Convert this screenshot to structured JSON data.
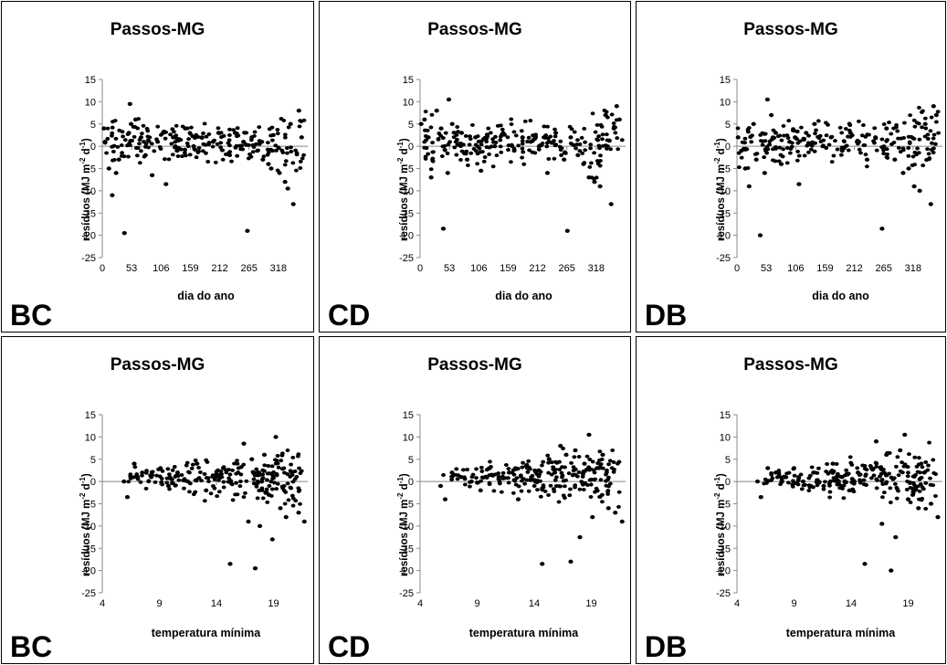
{
  "ylabel_prefix": "resíduos (MJ m",
  "ylabel_exp1": "-2",
  "ylabel_mid": " d",
  "ylabel_exp2": "-1",
  "ylabel_suffix": ")",
  "chart_data": [
    {
      "type": "scatter",
      "title": "Passos-MG",
      "panel_label": "BC",
      "xlabel": "dia do ano",
      "ylabel": "resíduos (MJ m-2 d-1)",
      "xlim": [
        0,
        371
      ],
      "ylim": [
        -25,
        15
      ],
      "xticks": [
        0,
        53,
        106,
        159,
        212,
        265,
        318
      ],
      "yticks": [
        15,
        10,
        5,
        0,
        -5,
        -10,
        -15,
        -20,
        -25
      ],
      "grid": false,
      "x": [
        3,
        5,
        12,
        18,
        25,
        30,
        40,
        48,
        50,
        52,
        60,
        70,
        78,
        90,
        100,
        110,
        115,
        128,
        135,
        150,
        165,
        180,
        200,
        210,
        230,
        240,
        255,
        262,
        270,
        280,
        290,
        300,
        305,
        320,
        330,
        335,
        340,
        345,
        355,
        360
      ],
      "y": [
        4,
        1,
        -5,
        -11,
        -6,
        -3,
        -19.5,
        3,
        9.5,
        5,
        6,
        2,
        -2,
        -6.5,
        1,
        3,
        -8.5,
        2,
        -1,
        4,
        0,
        2,
        1,
        3,
        -2,
        3,
        1,
        -19,
        2,
        -1,
        -3,
        -4,
        -5,
        -6,
        -8,
        -9.5,
        5,
        -13,
        8,
        2
      ]
    },
    {
      "type": "scatter",
      "title": "Passos-MG",
      "panel_label": "CD",
      "xlabel": "dia do ano",
      "ylabel": "resíduos (MJ m-2 d-1)",
      "xlim": [
        0,
        371
      ],
      "ylim": [
        -25,
        15
      ],
      "xticks": [
        0,
        53,
        106,
        159,
        212,
        265,
        318
      ],
      "yticks": [
        15,
        10,
        5,
        0,
        -5,
        -10,
        -15,
        -20,
        -25
      ],
      "grid": false,
      "x": [
        2,
        8,
        15,
        20,
        30,
        38,
        42,
        50,
        52,
        58,
        65,
        75,
        85,
        100,
        110,
        120,
        135,
        150,
        170,
        185,
        200,
        215,
        230,
        245,
        260,
        266,
        272,
        285,
        295,
        305,
        315,
        325,
        335,
        345,
        350,
        355,
        360
      ],
      "y": [
        5,
        6,
        2,
        -7,
        8,
        4,
        -18.5,
        -6,
        10.5,
        5,
        1,
        3,
        -3,
        2,
        -5.5,
        2,
        0,
        3,
        -1,
        2,
        1,
        0,
        -6,
        3,
        -3,
        -19,
        2,
        -2,
        -4,
        -7,
        -8,
        -9,
        7,
        -13,
        4,
        9,
        6
      ]
    },
    {
      "type": "scatter",
      "title": "Passos-MG",
      "panel_label": "DB",
      "xlabel": "dia do ano",
      "ylabel": "resíduos (MJ m-2 d-1)",
      "xlim": [
        0,
        371
      ],
      "ylim": [
        -25,
        15
      ],
      "xticks": [
        0,
        53,
        106,
        159,
        212,
        265,
        318
      ],
      "yticks": [
        15,
        10,
        5,
        0,
        -5,
        -10,
        -15,
        -20,
        -25
      ],
      "grid": false,
      "x": [
        2,
        8,
        15,
        22,
        30,
        35,
        42,
        50,
        55,
        62,
        70,
        80,
        95,
        105,
        112,
        125,
        140,
        155,
        170,
        190,
        205,
        220,
        235,
        250,
        262,
        270,
        285,
        300,
        310,
        320,
        330,
        340,
        350,
        355,
        360
      ],
      "y": [
        2,
        -1,
        -5,
        -9,
        5,
        -3,
        -20,
        -6,
        10.5,
        7,
        3,
        -4,
        1,
        2,
        -8.5,
        3,
        5,
        0,
        2,
        -1,
        3,
        1,
        -3,
        2,
        -18.5,
        4,
        -3,
        -6,
        -5,
        -9,
        -10,
        5,
        -13,
        9,
        7
      ]
    },
    {
      "type": "scatter",
      "title": "Passos-MG",
      "panel_label": "BC",
      "xlabel": "temperatura mínima",
      "ylabel": "resíduos (MJ m-2 d-1)",
      "xlim": [
        4,
        22
      ],
      "ylim": [
        -25,
        15
      ],
      "xticks": [
        4,
        9,
        14,
        19
      ],
      "yticks": [
        15,
        10,
        5,
        0,
        -5,
        -10,
        -15,
        -20,
        -25
      ],
      "grid": false,
      "x": [
        5.9,
        6.2,
        6.8,
        7.5,
        8.3,
        9.1,
        9.8,
        10.6,
        11.5,
        12.3,
        13.1,
        13.8,
        14.6,
        15.2,
        15.9,
        16.4,
        16.8,
        17.1,
        17.4,
        17.8,
        18.2,
        18.6,
        18.9,
        19.2,
        19.6,
        20.1,
        20.6,
        21.2,
        21.7
      ],
      "y": [
        0,
        -3.5,
        4,
        2,
        1,
        3,
        -1,
        2,
        0,
        4,
        -2,
        1,
        3,
        -18.5,
        2,
        8.5,
        -9,
        5,
        -19.5,
        -10,
        6,
        -3,
        -13,
        10,
        -6,
        -8,
        2,
        -7,
        -9
      ]
    },
    {
      "type": "scatter",
      "title": "Passos-MG",
      "panel_label": "CD",
      "xlabel": "temperatura mínima",
      "ylabel": "resíduos (MJ m-2 d-1)",
      "xlim": [
        4,
        22
      ],
      "ylim": [
        -25,
        15
      ],
      "xticks": [
        4,
        9,
        14,
        19
      ],
      "yticks": [
        15,
        10,
        5,
        0,
        -5,
        -10,
        -15,
        -20,
        -25
      ],
      "grid": false,
      "x": [
        5.8,
        6.2,
        6.8,
        7.6,
        8.5,
        9.3,
        10.1,
        10.9,
        11.8,
        12.6,
        13.4,
        14.1,
        14.7,
        15.3,
        15.8,
        16.3,
        16.8,
        17.2,
        17.6,
        18.0,
        18.4,
        18.8,
        19.1,
        19.5,
        20.0,
        20.5,
        21.1,
        21.7
      ],
      "y": [
        -1,
        -4,
        2,
        1,
        0,
        -2,
        3,
        1,
        2,
        -4,
        3,
        0,
        -18.5,
        5,
        2,
        8,
        6,
        -18,
        7,
        -12.5,
        4,
        10.5,
        -8,
        3,
        6,
        -6,
        -7,
        -9
      ]
    },
    {
      "type": "scatter",
      "title": "Passos-MG",
      "panel_label": "DB",
      "xlabel": "temperatura mínima",
      "ylabel": "resíduos (MJ m-2 d-1)",
      "xlim": [
        4,
        22
      ],
      "ylim": [
        -25,
        15
      ],
      "xticks": [
        4,
        9,
        14,
        19
      ],
      "yticks": [
        15,
        10,
        5,
        0,
        -5,
        -10,
        -15,
        -20,
        -25
      ],
      "grid": false,
      "x": [
        5.8,
        6.1,
        6.7,
        7.4,
        8.2,
        9.0,
        9.8,
        10.7,
        11.6,
        12.4,
        13.2,
        13.9,
        14.6,
        15.2,
        15.8,
        16.2,
        16.7,
        17.1,
        17.5,
        17.9,
        18.3,
        18.7,
        19.0,
        19.4,
        19.9,
        20.4,
        21.0,
        21.6
      ],
      "y": [
        0,
        -3.5,
        3,
        2,
        1,
        3,
        0,
        2,
        -1,
        4,
        1,
        -2,
        2,
        -18.5,
        3,
        9,
        -9.5,
        6,
        -20,
        -12.5,
        7,
        10.5,
        -4,
        -3,
        -6,
        2,
        -5,
        -8
      ]
    }
  ]
}
